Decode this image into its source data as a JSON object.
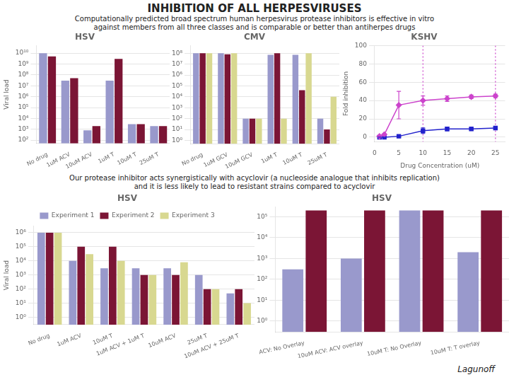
{
  "title": "INHIBITION OF ALL HERPESVIRUSES",
  "subtitle": [
    "Computationally predicted broad spectrum human herpesvirus protease inhibitors is effective in vitro",
    "against members from all three classes and is comparable or better than antiherpes drugs"
  ],
  "annotations": [
    "Our protease inhibitor acts synergistically with acyclovir (a nucleoside analogue that inhibits replication)",
    "and it is less likely to lead to resistant strains compared to acyclovir",
    "Lagunoff"
  ],
  "chart_data": [
    {
      "type": "bar",
      "title": "HSV",
      "ylabel": "Viral load",
      "categories": [
        "No drug",
        "1uM ACV",
        "10uM ACV",
        "1uM T",
        "10uM T",
        "25uM T"
      ],
      "series": [
        {
          "name": "Experiment 1",
          "color": "#9999cc",
          "values": [
            10000000000.0,
            30000000.0,
            800.0,
            30000000.0,
            3000.0,
            2000.0
          ]
        },
        {
          "name": "Experiment 2",
          "color": "#7b1535",
          "values": [
            5000000000.0,
            50000000.0,
            2000.0,
            3000000000.0,
            3000.0,
            2000.0
          ]
        }
      ],
      "log": "y",
      "ylim": [
        50,
        50000000000.0
      ],
      "yticks": [
        {
          "value": 100.0,
          "label": "10²"
        },
        {
          "value": 1000.0,
          "label": "10³"
        },
        {
          "value": 10000.0,
          "label": "10⁴"
        },
        {
          "value": 100000.0,
          "label": "10⁵"
        },
        {
          "value": 1000000.0,
          "label": "10⁶"
        },
        {
          "value": 10000000.0,
          "label": "10⁷"
        },
        {
          "value": 100000000.0,
          "label": "10⁸"
        },
        {
          "value": 1000000000.0,
          "label": "10⁹"
        },
        {
          "value": 10000000000.0,
          "label": "10¹⁰"
        }
      ],
      "grid": "y"
    },
    {
      "type": "bar",
      "title": "CMV",
      "categories": [
        "No drug",
        "1uM GCV",
        "10uM GCV",
        "1uM T",
        "10uM T",
        "25uM T"
      ],
      "series": [
        {
          "name": "Experiment 1",
          "color": "#9999cc",
          "values": [
            100000000.0,
            100000000.0,
            100.0,
            70000000.0,
            70000000.0,
            100.0
          ]
        },
        {
          "name": "Experiment 2",
          "color": "#7b1535",
          "values": [
            100000000.0,
            80000000.0,
            100.0,
            100000000.0,
            40000.0,
            10.0
          ]
        },
        {
          "name": "Experiment 3",
          "color": "#d8d890",
          "values": [
            100000000.0,
            100000000.0,
            100.0,
            100.0,
            100000000.0,
            10000.0
          ]
        }
      ],
      "log": "y",
      "ylim": [
        0.5,
        500000000.0
      ],
      "yticks": [
        {
          "value": 1,
          "label": "10⁰"
        },
        {
          "value": 10.0,
          "label": "10¹"
        },
        {
          "value": 100.0,
          "label": "10²"
        },
        {
          "value": 1000.0,
          "label": "10³"
        },
        {
          "value": 10000.0,
          "label": "10⁴"
        },
        {
          "value": 100000.0,
          "label": "10⁵"
        },
        {
          "value": 1000000.0,
          "label": "10⁶"
        },
        {
          "value": 10000000.0,
          "label": "10⁷"
        },
        {
          "value": 100000000.0,
          "label": "10⁸"
        }
      ],
      "grid": "y"
    },
    {
      "type": "line",
      "title": "KSHV",
      "xlabel": "Drug Concentration (uM)",
      "ylabel": "Fold inhibition",
      "x": [
        1,
        2,
        5,
        10,
        15,
        20,
        25
      ],
      "series": [
        {
          "color": "#cc44cc",
          "marker": "diamond",
          "values": [
            1,
            3,
            35,
            40,
            42,
            44,
            45
          ],
          "errors": [
            0,
            0,
            15,
            5,
            3,
            2,
            2
          ]
        },
        {
          "color": "#2222cc",
          "marker": "square",
          "values": [
            0,
            0,
            1,
            7,
            9,
            9,
            10
          ],
          "errors": [
            0,
            0,
            1,
            3,
            2,
            1,
            1
          ]
        }
      ],
      "vlines": [
        10,
        25
      ],
      "xlim": [
        0,
        27
      ],
      "xticks": [
        0,
        5,
        10,
        15,
        20,
        25
      ],
      "ylim": [
        -5,
        100
      ],
      "yticks": [
        0,
        20,
        40,
        60,
        80,
        100
      ],
      "grid": "y"
    },
    {
      "type": "bar",
      "title": "HSV",
      "ylabel": "Viral load",
      "categories": [
        "No drug",
        "1uM ACV",
        "10uM T",
        "1uM ACV + 1uM T",
        "10uM ACV",
        "25uM T",
        "10uM ACV + 25uM T"
      ],
      "series": [
        {
          "name": "Experiment 1",
          "color": "#9999cc",
          "values": [
            1000000.0,
            10000.0,
            3000.0,
            3000.0,
            3000.0,
            1000.0,
            50.0
          ]
        },
        {
          "name": "Experiment 2",
          "color": "#7b1535",
          "values": [
            1000000.0,
            100000.0,
            100000.0,
            1000.0,
            1000.0,
            100.0,
            100.0
          ]
        },
        {
          "name": "Experiment 3",
          "color": "#d8d890",
          "values": [
            1000000.0,
            30000.0,
            10000.0,
            1000.0,
            8000.0,
            100.0,
            10.0
          ]
        }
      ],
      "log": "y",
      "ylim": [
        0.3,
        3000000.0
      ],
      "yticks": [
        {
          "value": 1,
          "label": "10⁰"
        },
        {
          "value": 10.0,
          "label": "10¹"
        },
        {
          "value": 100.0,
          "label": "10²"
        },
        {
          "value": 1000.0,
          "label": "10³"
        },
        {
          "value": 10000.0,
          "label": "10⁴"
        },
        {
          "value": 100000.0,
          "label": "10⁵"
        },
        {
          "value": 1000000.0,
          "label": "10⁶"
        }
      ],
      "grid": "y",
      "legend": "top"
    },
    {
      "type": "bar",
      "title": "HSV",
      "categories": [
        "ACV: No Overlay",
        "10uM ACV: ACV overlay",
        "10uM T: No Overlay",
        "10uM T: T overlay"
      ],
      "series": [
        {
          "name": "Experiment 1",
          "color": "#9999cc",
          "values": [
            300.0,
            1000.0,
            200000.0,
            2000.0
          ]
        },
        {
          "name": "Experiment 2",
          "color": "#7b1535",
          "values": [
            200000.0,
            200000.0,
            200000.0,
            200000.0
          ]
        }
      ],
      "log": "y",
      "ylim": [
        0.3,
        300000.0
      ],
      "yticks": [
        {
          "value": 1,
          "label": "10⁰"
        },
        {
          "value": 10.0,
          "label": "10¹"
        },
        {
          "value": 100.0,
          "label": "10²"
        },
        {
          "value": 1000.0,
          "label": "10³"
        },
        {
          "value": 10000.0,
          "label": "10⁴"
        },
        {
          "value": 100000.0,
          "label": "10⁵"
        }
      ],
      "grid": "y"
    }
  ]
}
